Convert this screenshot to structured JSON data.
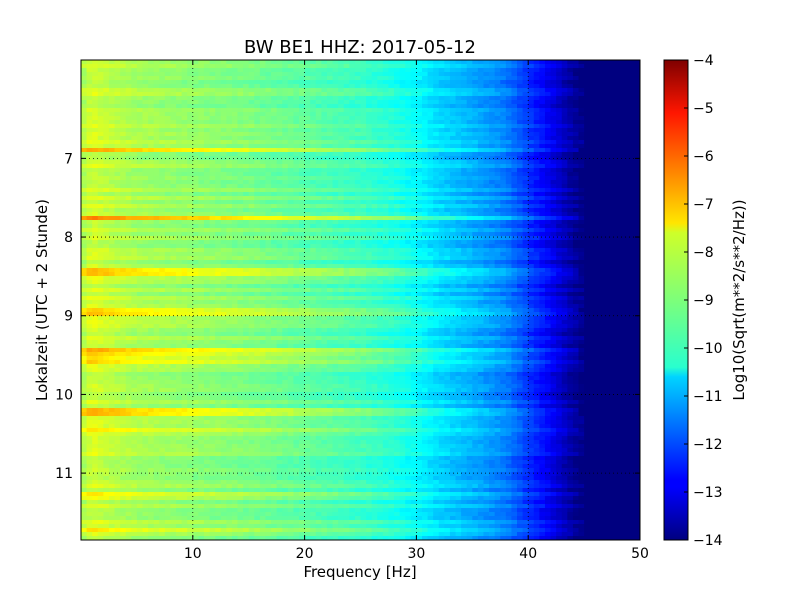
{
  "chart_data": {
    "type": "heatmap",
    "title": "BW BE1 HHZ: 2017-05-12",
    "xlabel": "Frequency [Hz]",
    "ylabel": "Lokalzeit (UTC + 2 Stunde)",
    "xlim": [
      0,
      50
    ],
    "ylim": [
      5.75,
      11.85
    ],
    "y_inverted": true,
    "x_ticks": [
      10,
      20,
      30,
      40,
      50
    ],
    "x_tick_labels": [
      "10",
      "20",
      "30",
      "40",
      "50"
    ],
    "y_ticks": [
      7,
      8,
      9,
      10,
      11
    ],
    "y_tick_labels": [
      "7",
      "8",
      "9",
      "10",
      "11"
    ],
    "grid": true,
    "colormap": "jet",
    "colorbar": {
      "label": "Log10(Sqrt(m**2/s**2/Hz))",
      "min": -14,
      "max": -4,
      "ticks": [
        -4,
        -5,
        -6,
        -7,
        -8,
        -9,
        -10,
        -11,
        -12,
        -13,
        -14
      ],
      "tick_labels": [
        "−4",
        "−5",
        "−6",
        "−7",
        "−8",
        "−9",
        "−10",
        "−11",
        "−12",
        "−13",
        "−14"
      ]
    },
    "spectral_profile": {
      "frequency_hz": [
        0,
        1,
        2,
        5,
        10,
        15,
        20,
        25,
        28,
        30,
        32,
        35,
        38,
        40,
        42,
        44,
        45,
        50
      ],
      "log10_amplitude": [
        -8.6,
        -8.1,
        -8.3,
        -8.6,
        -8.8,
        -9.0,
        -9.3,
        -9.6,
        -9.9,
        -10.2,
        -10.6,
        -11.0,
        -11.5,
        -12.2,
        -12.9,
        -13.7,
        -14.0,
        -14.0
      ]
    },
    "noise_bursts": [
      {
        "time_hour": 6.9,
        "boost": 1.4
      },
      {
        "time_hour": 7.75,
        "boost": 1.6
      },
      {
        "time_hour": 8.45,
        "boost": 1.0
      },
      {
        "time_hour": 8.95,
        "boost": 0.9
      },
      {
        "time_hour": 9.45,
        "boost": 1.1
      },
      {
        "time_hour": 9.55,
        "boost": 0.7
      },
      {
        "time_hour": 10.22,
        "boost": 1.4
      },
      {
        "time_hour": 10.45,
        "boost": 0.6
      },
      {
        "time_hour": 11.3,
        "boost": 0.6
      },
      {
        "time_hour": 11.72,
        "boost": 0.6
      }
    ]
  }
}
